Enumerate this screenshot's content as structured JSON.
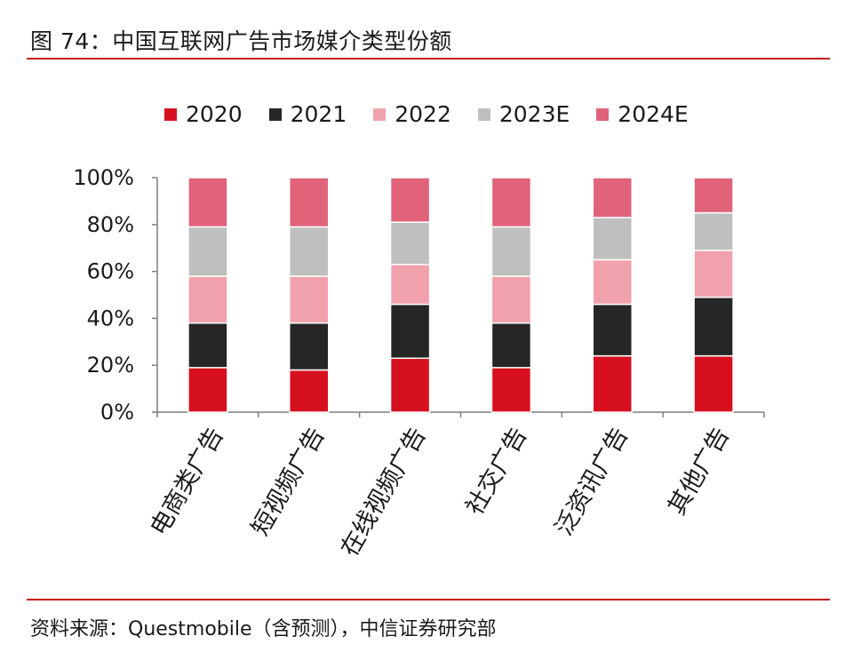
{
  "figure": {
    "title": "图 74：中国互联网广告市场媒介类型份额",
    "source": "资料来源：Questmobile（含预测），中信证券研究部"
  },
  "chart_data": {
    "type": "bar",
    "stacked": true,
    "percent": true,
    "categories": [
      "电商类广告",
      "短视频广告",
      "在线视频广告",
      "社交广告",
      "泛资讯广告",
      "其他广告"
    ],
    "series": [
      {
        "name": "2020",
        "color": "#d7101f",
        "values": [
          0.19,
          0.18,
          0.23,
          0.19,
          0.24,
          0.24
        ]
      },
      {
        "name": "2021",
        "color": "#262626",
        "values": [
          0.19,
          0.2,
          0.23,
          0.19,
          0.22,
          0.25
        ]
      },
      {
        "name": "2022",
        "color": "#f1a1ab",
        "values": [
          0.2,
          0.2,
          0.17,
          0.2,
          0.19,
          0.2
        ]
      },
      {
        "name": "2023E",
        "color": "#bfbfbf",
        "values": [
          0.21,
          0.21,
          0.18,
          0.21,
          0.18,
          0.16
        ]
      },
      {
        "name": "2024E",
        "color": "#e0637a",
        "values": [
          0.21,
          0.21,
          0.19,
          0.21,
          0.17,
          0.15
        ]
      }
    ],
    "y_ticks": [
      "0%",
      "20%",
      "40%",
      "60%",
      "80%",
      "100%"
    ],
    "ylim": [
      0,
      1
    ],
    "legend_position": "top",
    "grid": false
  }
}
